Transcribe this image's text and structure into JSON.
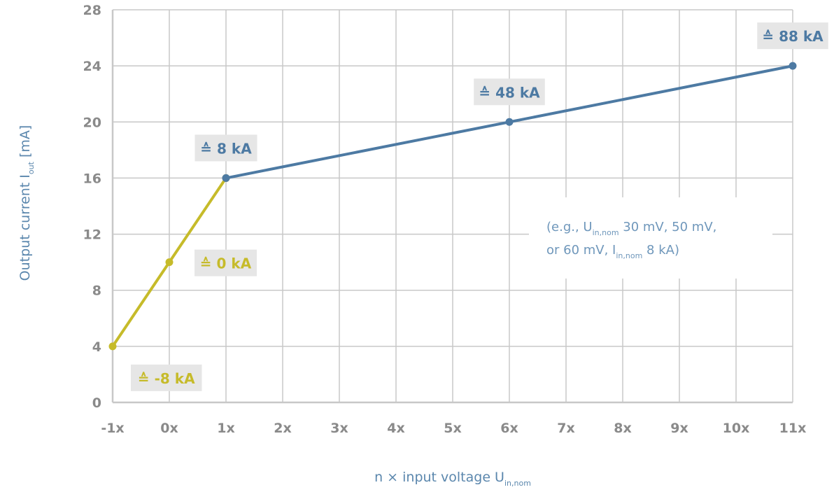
{
  "chart_data": {
    "type": "line",
    "xlabel_main": "n × input voltage U",
    "xlabel_sub": "in,nom",
    "ylabel_main": "Output current I",
    "ylabel_sub": "out",
    "ylabel_unit": " [mA]",
    "x_ticks": [
      "-1x",
      "0x",
      "1x",
      "2x",
      "3x",
      "4x",
      "5x",
      "6x",
      "7x",
      "8x",
      "9x",
      "10x",
      "11x"
    ],
    "y_ticks": [
      "0",
      "4",
      "8",
      "12",
      "16",
      "20",
      "24",
      "28"
    ],
    "xlim": [
      -1,
      11
    ],
    "ylim": [
      0,
      28
    ],
    "grid": true,
    "colors": {
      "yellow": "#c6bb2a",
      "blue": "#4d7aa3",
      "grid": "#c8c8c8",
      "box": "#e6e6e6"
    },
    "series": [
      {
        "color": "yellow",
        "points": [
          [
            -1,
            4
          ],
          [
            0,
            10
          ],
          [
            1,
            16
          ]
        ]
      },
      {
        "color": "blue",
        "points": [
          [
            1,
            16
          ],
          [
            6,
            20
          ],
          [
            11,
            24
          ]
        ]
      }
    ],
    "annotations": [
      {
        "text": "≙ 88 kA",
        "at": [
          11,
          24
        ],
        "color": "blue",
        "pos": "above"
      },
      {
        "text": "≙ 48 kA",
        "at": [
          6,
          20
        ],
        "color": "blue",
        "pos": "above"
      },
      {
        "text": "≙ 8 kA",
        "at": [
          1,
          16
        ],
        "color": "blue",
        "pos": "above"
      },
      {
        "text": "≙ 0 kA",
        "at": [
          0,
          10
        ],
        "color": "yellow",
        "pos": "right"
      },
      {
        "text": "≙ -8 kA",
        "at": [
          -1,
          4
        ],
        "color": "yellow",
        "pos": "below"
      }
    ],
    "note": {
      "line1_a": "(e.g., U",
      "line1_sub": "in,nom",
      "line1_b": " 30 mV, 50 mV,",
      "line2_a": "or 60 mV, I",
      "line2_sub": "in,nom",
      "line2_b": " 8 kA)"
    }
  }
}
